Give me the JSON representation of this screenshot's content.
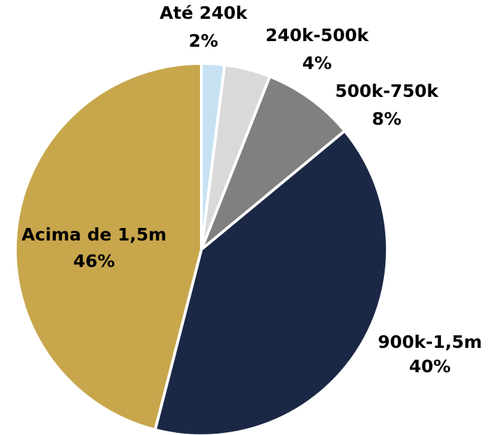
{
  "chart_data": {
    "type": "pie",
    "categories": [
      "Até 240k",
      "240k-500k",
      "500k-750k",
      "900k-1,5m",
      "Acima de 1,5m"
    ],
    "values": [
      2,
      4,
      8,
      40,
      46
    ],
    "value_labels": [
      "2%",
      "4%",
      "8%",
      "40%",
      "46%"
    ],
    "colors": [
      "#c6e2f2",
      "#d9d9d9",
      "#808080",
      "#1b2845",
      "#c8a64c"
    ]
  }
}
